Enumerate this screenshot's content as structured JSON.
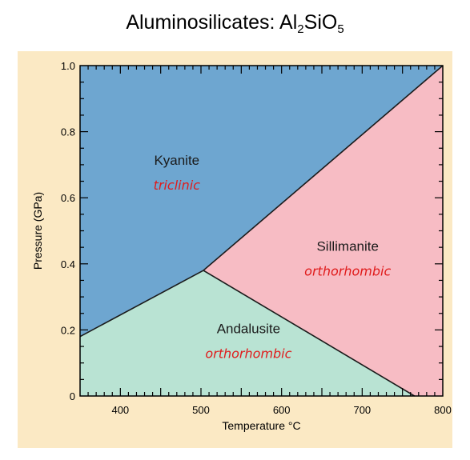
{
  "title": {
    "prefix": "Aluminosilicates: Al",
    "sub1": "2",
    "mid": "SiO",
    "sub2": "5"
  },
  "colors": {
    "kyanite": "#6ea6d0",
    "sillimanite": "#f7bcc4",
    "andalusite": "#b9e3d3",
    "frame": "#fbe9c4",
    "crystal_system_text": "#e01b1b"
  },
  "axes": {
    "x_title": "Temperature °C",
    "y_title": "Pressure (GPa)",
    "x_range": [
      350,
      800
    ],
    "y_range": [
      0,
      1.0
    ],
    "x_ticks": [
      "400",
      "500",
      "600",
      "700",
      "800"
    ],
    "x_tick_values": [
      400,
      500,
      600,
      700,
      800
    ],
    "y_ticks": [
      "0",
      "0.2",
      "0.4",
      "0.6",
      "0.8",
      "1.0"
    ],
    "y_tick_values": [
      0,
      0.2,
      0.4,
      0.6,
      0.8,
      1.0
    ]
  },
  "triple_point": {
    "temperature": 503,
    "pressure": 0.38
  },
  "boundaries": {
    "kyanite_andalusite": [
      [
        350,
        0.18
      ],
      [
        503,
        0.38
      ]
    ],
    "kyanite_sillimanite": [
      [
        503,
        0.38
      ],
      [
        800,
        1.0
      ]
    ],
    "andalusite_sillimanite": [
      [
        503,
        0.38
      ],
      [
        765,
        0.0
      ]
    ]
  },
  "regions": {
    "kyanite": {
      "name": "Kyanite",
      "system": "triclinic",
      "at": [
        470,
        0.7
      ]
    },
    "sillimanite": {
      "name": "Sillimanite",
      "system": "orthorhombic",
      "at": [
        682,
        0.44
      ]
    },
    "andalusite": {
      "name": "Andalusite",
      "system": "orthorhombic",
      "at": [
        559,
        0.19
      ]
    }
  }
}
